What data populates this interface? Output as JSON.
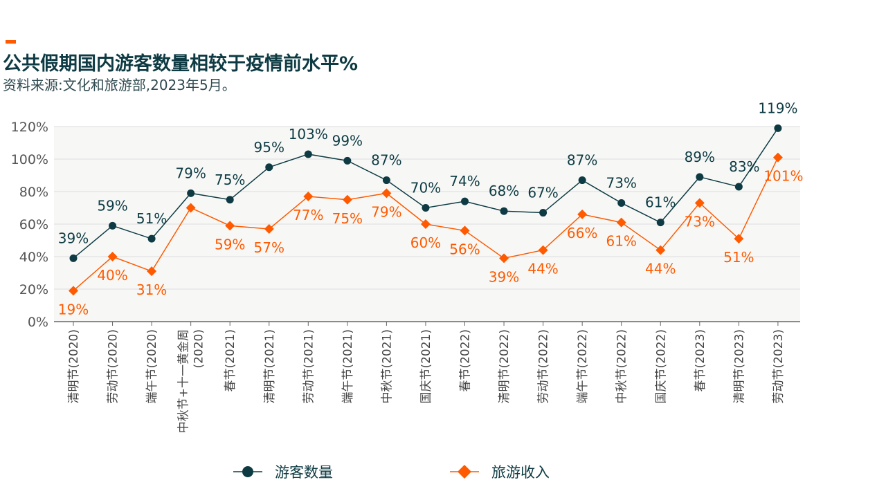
{
  "header": {
    "title": "公共假期国内游客数量相较于疫情前水平%",
    "subtitle": "资料来源:文化和旅游部,2023年5月。"
  },
  "colors": {
    "visitors": "#0e3b43",
    "revenue": "#ff5a00",
    "grid": "#dddddd",
    "plot_bg": "#f7f8f6",
    "axis": "#666666"
  },
  "chart_data": {
    "type": "line",
    "title": "公共假期国内游客数量相较于疫情前水平%",
    "subtitle": "资料来源:文化和旅游部,2023年5月。",
    "xlabel": "",
    "ylabel": "",
    "ylim": [
      0,
      120
    ],
    "yticks": [
      "0%",
      "20%",
      "40%",
      "60%",
      "80%",
      "100%",
      "120%"
    ],
    "grid": true,
    "legend_position": "bottom",
    "categories": [
      "清明节(2020)",
      "劳动节(2020)",
      "端午节(2020)",
      "中秋节+十一黄金周(2020)",
      "春节(2021)",
      "清明节(2021)",
      "劳动节(2021)",
      "端午节(2021)",
      "中秋节(2021)",
      "国庆节(2021)",
      "春节(2022)",
      "清明节(2022)",
      "劳动节(2022)",
      "端午节(2022)",
      "中秋节(2022)",
      "国庆节(2022)",
      "春节(2023)",
      "清明节(2023)",
      "劳动节(2023)"
    ],
    "category_lines": [
      [
        "清明节(2020)"
      ],
      [
        "劳动节(2020)"
      ],
      [
        "端午节(2020)"
      ],
      [
        "中秋节+十一黄金周",
        "(2020)"
      ],
      [
        "春节(2021)"
      ],
      [
        "清明节(2021)"
      ],
      [
        "劳动节(2021)"
      ],
      [
        "端午节(2021)"
      ],
      [
        "中秋节(2021)"
      ],
      [
        "国庆节(2021)"
      ],
      [
        "春节(2022)"
      ],
      [
        "清明节(2022)"
      ],
      [
        "劳动节(2022)"
      ],
      [
        "端午节(2022)"
      ],
      [
        "中秋节(2022)"
      ],
      [
        "国庆节(2022)"
      ],
      [
        "春节(2023)"
      ],
      [
        "清明节(2023)"
      ],
      [
        "劳动节(2023)"
      ]
    ],
    "series": [
      {
        "name": "游客数量",
        "marker": "circle",
        "values": [
          39,
          59,
          51,
          79,
          75,
          95,
          103,
          99,
          87,
          70,
          74,
          68,
          67,
          87,
          73,
          61,
          89,
          83,
          119
        ],
        "labels": [
          "39%",
          "59%",
          "51%",
          "79%",
          "75%",
          "95%",
          "103%",
          "99%",
          "87%",
          "70%",
          "74%",
          "68%",
          "67%",
          "87%",
          "73%",
          "61%",
          "89%",
          "83%",
          "119%"
        ]
      },
      {
        "name": "旅游收入",
        "marker": "diamond",
        "values": [
          19,
          40,
          31,
          70,
          59,
          57,
          77,
          75,
          79,
          60,
          56,
          39,
          44,
          66,
          61,
          44,
          73,
          51,
          101
        ],
        "labels": [
          "19%",
          "40%",
          "31%",
          "",
          "59%",
          "57%",
          "77%",
          "75%",
          "79%",
          "60%",
          "56%",
          "39%",
          "44%",
          "66%",
          "61%",
          "44%",
          "73%",
          "51%",
          "101%"
        ]
      }
    ]
  }
}
